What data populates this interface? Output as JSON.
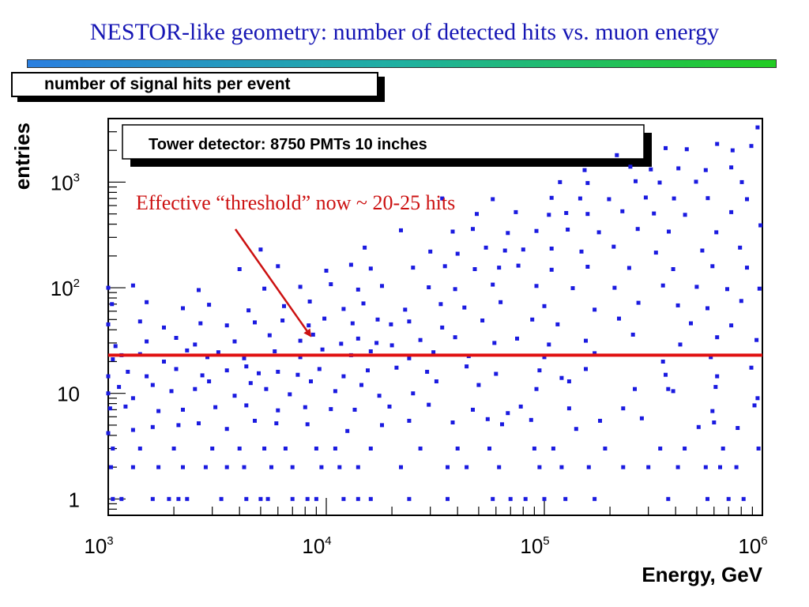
{
  "slide": {
    "title": "NESTOR-like geometry: number of detected hits vs. muon energy"
  },
  "histogram_title": "number of signal hits per event",
  "colors": {
    "title": "#1616b4",
    "points": "#1a1ae0",
    "threshold_line": "#e01010",
    "annotation": "#cc1111"
  },
  "chart_data": {
    "type": "scatter",
    "title": "Tower detector: 8750 PMTs 10 inches",
    "xlabel": "Energy, GeV",
    "ylabel": "entries",
    "xscale": "log",
    "yscale": "log",
    "xlim": [
      1000,
      1000000
    ],
    "ylim": [
      0.7,
      4000
    ],
    "xticks": [
      "10^3",
      "10^4",
      "10^5",
      "10^6"
    ],
    "yticks": [
      "1",
      "10",
      "10^2",
      "10^3"
    ],
    "threshold": 23,
    "annotation": "Effective “threshold” now ~ 20-25 hits",
    "points": [
      [
        1050,
        1
      ],
      [
        1150,
        1
      ],
      [
        1600,
        1
      ],
      [
        1900,
        1
      ],
      [
        2100,
        1
      ],
      [
        2300,
        1
      ],
      [
        3300,
        1
      ],
      [
        4300,
        1
      ],
      [
        5000,
        1
      ],
      [
        5400,
        1
      ],
      [
        7000,
        1
      ],
      [
        8200,
        1
      ],
      [
        9000,
        1
      ],
      [
        12000,
        1
      ],
      [
        14000,
        1
      ],
      [
        16000,
        1
      ],
      [
        24000,
        1
      ],
      [
        36000,
        1
      ],
      [
        58000,
        1
      ],
      [
        70000,
        1
      ],
      [
        82000,
        1
      ],
      [
        100000,
        1
      ],
      [
        125000,
        1
      ],
      [
        170000,
        1
      ],
      [
        370000,
        1
      ],
      [
        560000,
        1
      ],
      [
        700000,
        1
      ],
      [
        820000,
        1
      ],
      [
        1030,
        2
      ],
      [
        1300,
        2
      ],
      [
        1700,
        2
      ],
      [
        2200,
        2
      ],
      [
        2800,
        2
      ],
      [
        3500,
        2
      ],
      [
        4200,
        2
      ],
      [
        5600,
        2
      ],
      [
        7000,
        2
      ],
      [
        9500,
        2
      ],
      [
        11500,
        2
      ],
      [
        14000,
        2
      ],
      [
        22000,
        2
      ],
      [
        36000,
        2
      ],
      [
        44000,
        2
      ],
      [
        62000,
        2
      ],
      [
        95000,
        2
      ],
      [
        120000,
        2
      ],
      [
        160000,
        2
      ],
      [
        230000,
        2
      ],
      [
        300000,
        2
      ],
      [
        410000,
        2
      ],
      [
        550000,
        2
      ],
      [
        640000,
        2
      ],
      [
        760000,
        2
      ],
      [
        1050,
        3
      ],
      [
        1400,
        3
      ],
      [
        2000,
        3
      ],
      [
        3000,
        3
      ],
      [
        4000,
        3
      ],
      [
        5200,
        3
      ],
      [
        6500,
        3
      ],
      [
        9000,
        3
      ],
      [
        11000,
        3
      ],
      [
        16000,
        3
      ],
      [
        27000,
        3
      ],
      [
        40000,
        3
      ],
      [
        56000,
        3
      ],
      [
        90000,
        3
      ],
      [
        110000,
        3
      ],
      [
        190000,
        3
      ],
      [
        340000,
        3
      ],
      [
        440000,
        3
      ],
      [
        660000,
        3
      ],
      [
        960000,
        3
      ],
      [
        1000,
        4.2
      ],
      [
        1300,
        4.5
      ],
      [
        1600,
        4.8
      ],
      [
        2100,
        5
      ],
      [
        2600,
        5.2
      ],
      [
        3500,
        4.6
      ],
      [
        4700,
        5.5
      ],
      [
        5900,
        5.2
      ],
      [
        8200,
        5.1
      ],
      [
        12500,
        4.4
      ],
      [
        18000,
        5
      ],
      [
        24000,
        5.5
      ],
      [
        38000,
        5.3
      ],
      [
        55000,
        5.7
      ],
      [
        64000,
        5.1
      ],
      [
        87000,
        5.6
      ],
      [
        140000,
        4.6
      ],
      [
        180000,
        5.5
      ],
      [
        280000,
        5.8
      ],
      [
        510000,
        4.8
      ],
      [
        600000,
        5.3
      ],
      [
        770000,
        4.7
      ],
      [
        1020,
        7.2
      ],
      [
        1200,
        7.5
      ],
      [
        1700,
        6.8
      ],
      [
        2200,
        7
      ],
      [
        3100,
        7.4
      ],
      [
        4300,
        7.7
      ],
      [
        6000,
        6.9
      ],
      [
        8000,
        7.4
      ],
      [
        10500,
        7.1
      ],
      [
        13500,
        7
      ],
      [
        19500,
        7.5
      ],
      [
        29500,
        7.8
      ],
      [
        47000,
        7
      ],
      [
        68000,
        6.5
      ],
      [
        78000,
        7.5
      ],
      [
        130000,
        7.2
      ],
      [
        230000,
        7.2
      ],
      [
        590000,
        6.8
      ],
      [
        920000,
        7.7
      ],
      [
        1000,
        10
      ],
      [
        1120,
        11.5
      ],
      [
        1300,
        9
      ],
      [
        1600,
        12
      ],
      [
        1950,
        10.5
      ],
      [
        2500,
        11
      ],
      [
        2900,
        13
      ],
      [
        3800,
        9.5
      ],
      [
        4500,
        12.5
      ],
      [
        5300,
        11
      ],
      [
        6800,
        9.8
      ],
      [
        8500,
        13
      ],
      [
        11000,
        10.5
      ],
      [
        14500,
        12
      ],
      [
        17500,
        9.5
      ],
      [
        25000,
        10
      ],
      [
        32000,
        13
      ],
      [
        50000,
        12
      ],
      [
        92000,
        11
      ],
      [
        130000,
        13
      ],
      [
        260000,
        11
      ],
      [
        370000,
        11
      ],
      [
        390000,
        10.5
      ],
      [
        610000,
        11.5
      ],
      [
        950000,
        9
      ],
      [
        1000,
        14.5
      ],
      [
        1230,
        16
      ],
      [
        1500,
        14.5
      ],
      [
        2050,
        17
      ],
      [
        2700,
        14.8
      ],
      [
        3500,
        16.5
      ],
      [
        4300,
        18
      ],
      [
        4900,
        15.5
      ],
      [
        6000,
        16
      ],
      [
        7400,
        15
      ],
      [
        9300,
        17
      ],
      [
        12000,
        14.5
      ],
      [
        15500,
        16.5
      ],
      [
        21000,
        17.5
      ],
      [
        29000,
        16
      ],
      [
        44000,
        18
      ],
      [
        60000,
        15.3
      ],
      [
        95000,
        16.5
      ],
      [
        120000,
        14
      ],
      [
        155000,
        17
      ],
      [
        360000,
        15
      ],
      [
        620000,
        14.5
      ],
      [
        890000,
        17.5
      ],
      [
        1050,
        21
      ],
      [
        1150,
        23
      ],
      [
        1400,
        23.5
      ],
      [
        1800,
        20
      ],
      [
        2300,
        25.5
      ],
      [
        2850,
        22
      ],
      [
        3200,
        24.5
      ],
      [
        4200,
        21.5
      ],
      [
        5800,
        25
      ],
      [
        7600,
        22
      ],
      [
        9600,
        26
      ],
      [
        13000,
        23
      ],
      [
        16000,
        25
      ],
      [
        24000,
        21.5
      ],
      [
        31000,
        24.5
      ],
      [
        45000,
        22.5
      ],
      [
        100000,
        22
      ],
      [
        170000,
        24
      ],
      [
        350000,
        20
      ],
      [
        580000,
        22
      ],
      [
        1080,
        28
      ],
      [
        1500,
        31
      ],
      [
        2050,
        33.5
      ],
      [
        2500,
        29
      ],
      [
        3800,
        31
      ],
      [
        5500,
        35.5
      ],
      [
        7600,
        31.5
      ],
      [
        8700,
        36
      ],
      [
        11700,
        29.5
      ],
      [
        14000,
        33
      ],
      [
        17000,
        30
      ],
      [
        20000,
        28.5
      ],
      [
        27000,
        32
      ],
      [
        39000,
        34
      ],
      [
        59000,
        30
      ],
      [
        75000,
        33
      ],
      [
        105000,
        29
      ],
      [
        155000,
        31.5
      ],
      [
        255000,
        36
      ],
      [
        420000,
        29
      ],
      [
        620000,
        34
      ],
      [
        940000,
        32
      ],
      [
        1000,
        45
      ],
      [
        1400,
        48
      ],
      [
        1800,
        42
      ],
      [
        2650,
        46
      ],
      [
        3500,
        44
      ],
      [
        4700,
        47
      ],
      [
        6300,
        49
      ],
      [
        8300,
        44
      ],
      [
        9800,
        51
      ],
      [
        13200,
        46
      ],
      [
        17200,
        50
      ],
      [
        19800,
        45
      ],
      [
        24000,
        48
      ],
      [
        34000,
        42
      ],
      [
        52000,
        49
      ],
      [
        88000,
        50
      ],
      [
        115000,
        45
      ],
      [
        220000,
        51
      ],
      [
        470000,
        46
      ],
      [
        720000,
        44
      ],
      [
        1040,
        70
      ],
      [
        1500,
        73
      ],
      [
        2200,
        64
      ],
      [
        2900,
        69
      ],
      [
        4400,
        61
      ],
      [
        6400,
        67
      ],
      [
        8400,
        74
      ],
      [
        12000,
        63
      ],
      [
        14800,
        71
      ],
      [
        23000,
        62
      ],
      [
        33500,
        70
      ],
      [
        43000,
        65
      ],
      [
        63000,
        73
      ],
      [
        100000,
        67
      ],
      [
        170000,
        62
      ],
      [
        270000,
        72
      ],
      [
        410000,
        68
      ],
      [
        560000,
        64
      ],
      [
        800000,
        75
      ],
      [
        1000,
        100
      ],
      [
        1300,
        105
      ],
      [
        2600,
        95
      ],
      [
        5200,
        98
      ],
      [
        7600,
        102
      ],
      [
        10500,
        108
      ],
      [
        14000,
        96
      ],
      [
        18000,
        104
      ],
      [
        29500,
        101
      ],
      [
        39000,
        97
      ],
      [
        58000,
        107
      ],
      [
        92000,
        104
      ],
      [
        135000,
        99
      ],
      [
        210000,
        100
      ],
      [
        350000,
        105
      ],
      [
        500000,
        102
      ],
      [
        690000,
        97
      ],
      [
        970000,
        98
      ],
      [
        4000,
        150
      ],
      [
        6000,
        160
      ],
      [
        10000,
        145
      ],
      [
        13000,
        165
      ],
      [
        16000,
        152
      ],
      [
        25000,
        155
      ],
      [
        35000,
        160
      ],
      [
        48000,
        150
      ],
      [
        62000,
        155
      ],
      [
        76000,
        162
      ],
      [
        108000,
        148
      ],
      [
        158000,
        158
      ],
      [
        245000,
        154
      ],
      [
        390000,
        150
      ],
      [
        590000,
        160
      ],
      [
        850000,
        155
      ],
      [
        5000,
        230
      ],
      [
        15000,
        240
      ],
      [
        30000,
        220
      ],
      [
        40000,
        210
      ],
      [
        54000,
        240
      ],
      [
        66000,
        225
      ],
      [
        80000,
        230
      ],
      [
        108000,
        235
      ],
      [
        148000,
        220
      ],
      [
        208000,
        245
      ],
      [
        325000,
        215
      ],
      [
        530000,
        225
      ],
      [
        790000,
        240
      ],
      [
        22000,
        350
      ],
      [
        38000,
        340
      ],
      [
        47000,
        360
      ],
      [
        68000,
        330
      ],
      [
        92000,
        345
      ],
      [
        128000,
        355
      ],
      [
        178000,
        335
      ],
      [
        268000,
        360
      ],
      [
        372000,
        340
      ],
      [
        615000,
        335
      ],
      [
        980000,
        390
      ],
      [
        49000,
        500
      ],
      [
        74000,
        520
      ],
      [
        105000,
        490
      ],
      [
        126000,
        510
      ],
      [
        158000,
        500
      ],
      [
        228000,
        530
      ],
      [
        318000,
        505
      ],
      [
        442000,
        490
      ],
      [
        720000,
        520
      ],
      [
        34000,
        700
      ],
      [
        58000,
        690
      ],
      [
        108000,
        710
      ],
      [
        146000,
        700
      ],
      [
        198000,
        690
      ],
      [
        292000,
        715
      ],
      [
        393000,
        700
      ],
      [
        562000,
        705
      ],
      [
        850000,
        690
      ],
      [
        118000,
        1000
      ],
      [
        158000,
        980
      ],
      [
        262000,
        1020
      ],
      [
        338000,
        990
      ],
      [
        496000,
        1010
      ],
      [
        805000,
        1000
      ],
      [
        153000,
        1300
      ],
      [
        248000,
        1400
      ],
      [
        308000,
        1320
      ],
      [
        412000,
        1350
      ],
      [
        550000,
        1300
      ],
      [
        720000,
        1380
      ],
      [
        215000,
        1800
      ],
      [
        360000,
        2100
      ],
      [
        450000,
        2050
      ],
      [
        620000,
        2300
      ],
      [
        730000,
        2000
      ],
      [
        890000,
        2200
      ],
      [
        950000,
        3300
      ]
    ]
  }
}
